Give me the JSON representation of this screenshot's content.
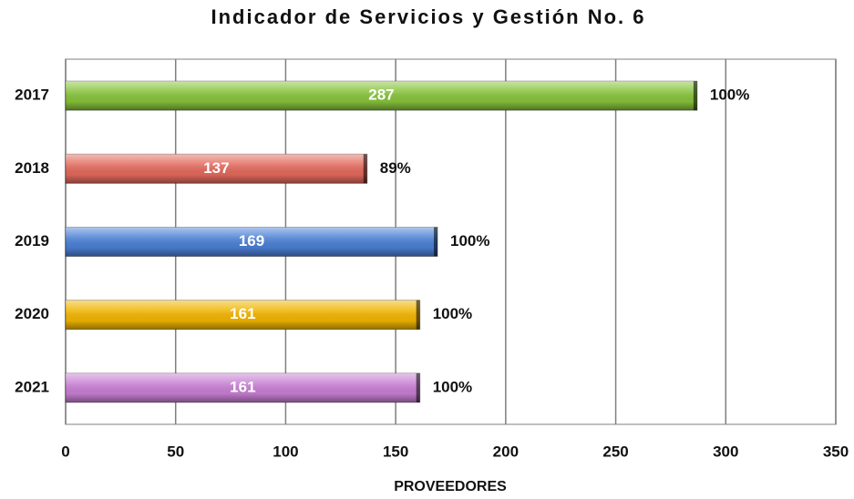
{
  "chart_data": {
    "type": "barh",
    "title": "Indicador de Servicios y Gestión No. 6",
    "x_label": "PROVEEDORES",
    "categories": [
      "2017",
      "2018",
      "2019",
      "2020",
      "2021"
    ],
    "values": [
      287,
      137,
      169,
      161,
      161
    ],
    "percent_labels": [
      "100%",
      "89%",
      "100%",
      "100%",
      "100%"
    ],
    "colors": [
      "#86c23a",
      "#e2695c",
      "#4a7fd4",
      "#f0b400",
      "#c77ed2"
    ],
    "xlim": [
      0,
      350
    ],
    "xticks": [
      0,
      50,
      100,
      150,
      200,
      250,
      300,
      350
    ],
    "grid": true
  }
}
